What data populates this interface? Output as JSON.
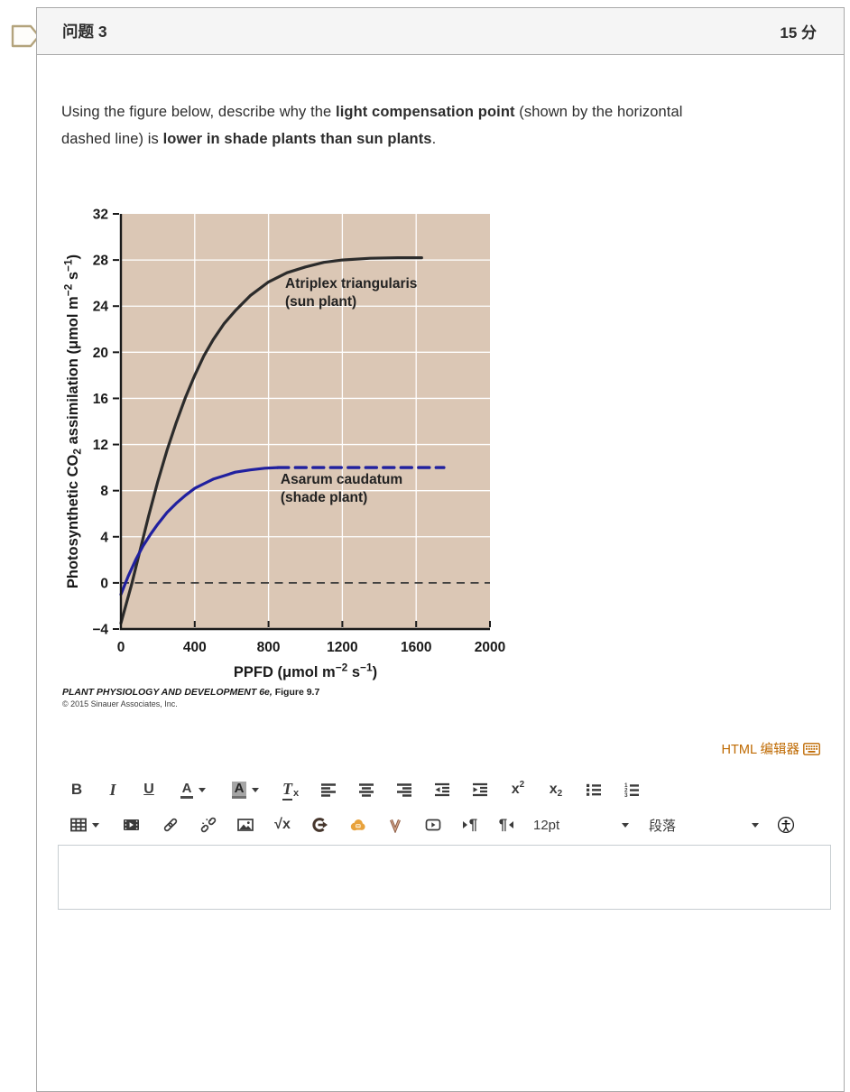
{
  "header": {
    "title": "问题 3",
    "points": "15 分"
  },
  "question": {
    "segments": [
      {
        "t": "Using the figure below, describe why the "
      },
      {
        "t": "light compensation point",
        "b": true
      },
      {
        "t": " (shown by the horizontal"
      },
      {
        "br": true
      },
      {
        "t": "dashed line) is "
      },
      {
        "t": "lower in shade plants than sun plants",
        "b": true
      },
      {
        "t": "."
      }
    ]
  },
  "figure": {
    "credit_segments": [
      {
        "t": "PLANT PHYSIOLOGY AND DEVELOPMENT 6e,",
        "b": true,
        "i": true
      },
      {
        "t": " Figure 9.7",
        "b": true
      }
    ],
    "copyright": "© 2015 Sinauer Associates, Inc."
  },
  "chart_data": {
    "type": "line",
    "xlabel_segments": [
      {
        "t": "PPFD (μmol m"
      },
      {
        "t": "−2",
        "sup": true
      },
      {
        "t": " s"
      },
      {
        "t": "−1",
        "sup": true
      },
      {
        "t": ")"
      }
    ],
    "ylabel_segments": [
      {
        "t": "Photosynthetic CO"
      },
      {
        "t": "2",
        "sub": true
      },
      {
        "t": " assimilation (μmol m"
      },
      {
        "t": "−2",
        "sup": true
      },
      {
        "t": " s"
      },
      {
        "t": "−1",
        "sup": true
      },
      {
        "t": ")"
      }
    ],
    "xlim": [
      0,
      2000
    ],
    "ylim": [
      -4,
      32
    ],
    "xticks": [
      0,
      400,
      800,
      1200,
      1600,
      2000
    ],
    "yticks": [
      -4,
      0,
      4,
      8,
      12,
      16,
      20,
      24,
      28,
      32
    ],
    "plot_bg": "#dbc7b5",
    "grid_color": "#ffffff",
    "axis_color": "#1a1a1a",
    "zero_line": {
      "y": 0,
      "color": "#3a3a3a",
      "style": "dashed"
    },
    "series": [
      {
        "name": "Atriplex triangularis (sun plant)",
        "color": "#2b2b2b",
        "dashed": false,
        "points": [
          [
            0,
            -3.5
          ],
          [
            60,
            0
          ],
          [
            100,
            2.6
          ],
          [
            150,
            5.8
          ],
          [
            200,
            8.8
          ],
          [
            250,
            11.5
          ],
          [
            300,
            13.9
          ],
          [
            350,
            16.1
          ],
          [
            400,
            18.0
          ],
          [
            450,
            19.7
          ],
          [
            500,
            21.1
          ],
          [
            560,
            22.5
          ],
          [
            620,
            23.6
          ],
          [
            700,
            24.9
          ],
          [
            800,
            26.1
          ],
          [
            900,
            26.9
          ],
          [
            1000,
            27.4
          ],
          [
            1100,
            27.8
          ],
          [
            1200,
            28.0
          ],
          [
            1350,
            28.15
          ],
          [
            1500,
            28.2
          ],
          [
            1630,
            28.2
          ]
        ]
      },
      {
        "name": "Asarum caudatum (shade plant)",
        "color": "#20209f",
        "dashed": false,
        "points": [
          [
            0,
            -1.0
          ],
          [
            40,
            0.6
          ],
          [
            80,
            2.0
          ],
          [
            120,
            3.2
          ],
          [
            160,
            4.2
          ],
          [
            200,
            5.1
          ],
          [
            250,
            6.1
          ],
          [
            300,
            6.9
          ],
          [
            350,
            7.6
          ],
          [
            400,
            8.2
          ],
          [
            450,
            8.6
          ],
          [
            500,
            9.0
          ],
          [
            560,
            9.3
          ],
          [
            620,
            9.6
          ],
          [
            700,
            9.8
          ],
          [
            780,
            9.95
          ],
          [
            850,
            10.0
          ]
        ]
      },
      {
        "name": "Asarum caudatum light-saturated extrapolation",
        "color": "#20209f",
        "dashed": true,
        "points": [
          [
            850,
            10.0
          ],
          [
            1750,
            10.0
          ]
        ]
      }
    ],
    "annotations": [
      {
        "line1": "Atriplex triangularis",
        "line2": "(sun plant)",
        "x": 890,
        "y": 25.6
      },
      {
        "line1": "Asarum caudatum",
        "line2": "(shade plant)",
        "x": 865,
        "y": 8.6
      }
    ]
  },
  "editor": {
    "html_editor_label": "HTML 编辑器",
    "toolbar": {
      "bold": "B",
      "italic": "I",
      "underline": "U",
      "text_color": "A",
      "highlight": "A",
      "clear_t": "T",
      "clear_x": "x",
      "sup_base": "x",
      "sup_exp": "2",
      "sub_base": "x",
      "sub_idx": "2",
      "equation": "√x",
      "pilcrow": "¶",
      "font_size": "12pt",
      "paragraph": "段落"
    }
  }
}
